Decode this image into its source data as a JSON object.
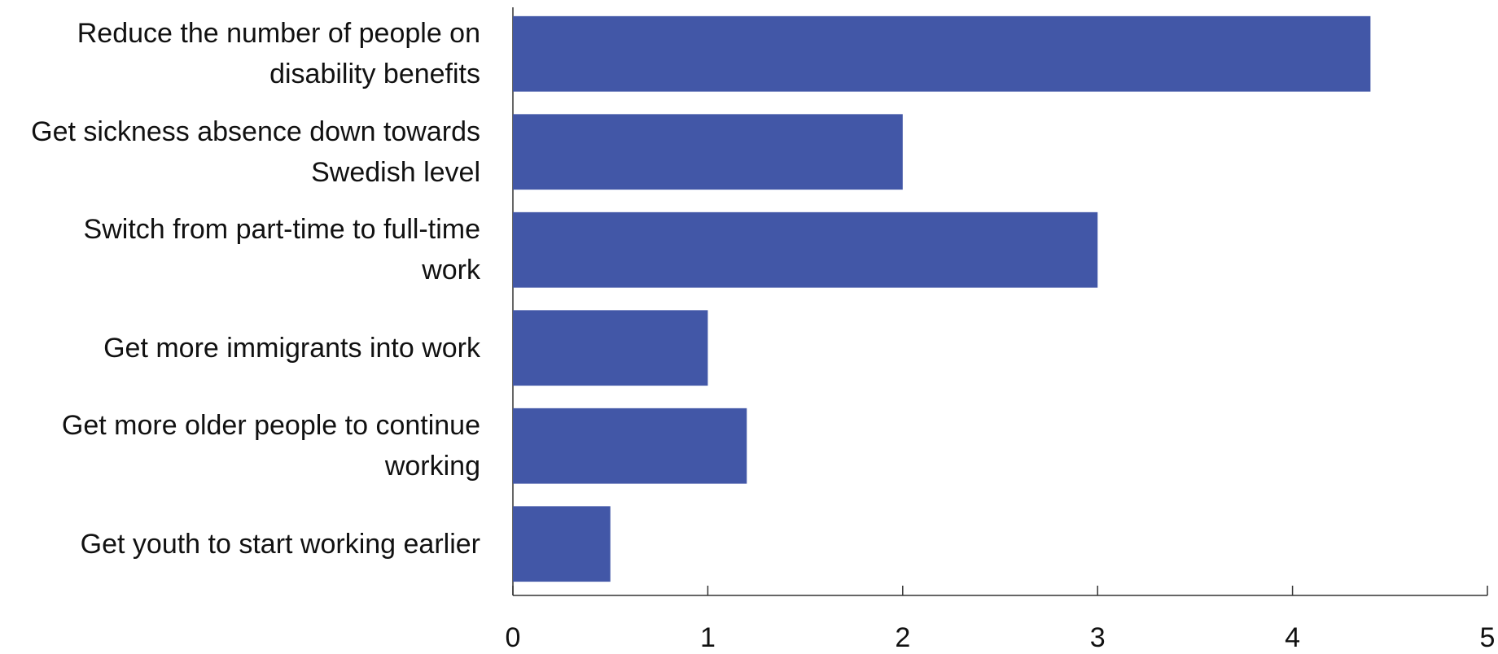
{
  "chart_data": {
    "type": "hbar",
    "categories": [
      "Reduce the number of people on disability benefits",
      "Get sickness absence down towards Swedish level",
      "Switch from part-time to full-time work",
      "Get more immigrants into work",
      "Get more older people to continue working",
      "Get youth to start working earlier"
    ],
    "values": [
      4.4,
      2,
      3,
      1,
      1.2,
      0.5
    ],
    "color": "#4257a7",
    "xlim": [
      0,
      5
    ],
    "xticks": [
      0,
      1,
      2,
      3,
      4,
      5
    ]
  }
}
